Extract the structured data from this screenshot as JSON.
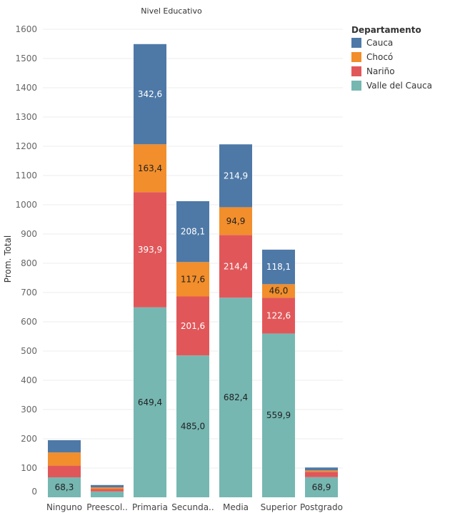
{
  "chart_data": {
    "type": "bar",
    "stacked": true,
    "title": "Nivel Educativo",
    "ylabel": "Prom. Total",
    "ylim": [
      0,
      1600
    ],
    "yticks": [
      0,
      100,
      200,
      300,
      400,
      500,
      600,
      700,
      800,
      900,
      1000,
      1100,
      1200,
      1300,
      1400,
      1500,
      1600
    ],
    "grid": true,
    "categories": [
      "Ninguno",
      "Preescol..",
      "Primaria",
      "Secunda..",
      "Media",
      "Superior",
      "Postgrado"
    ],
    "legend": {
      "title": "Departamento",
      "placement": "top-right"
    },
    "series": [
      {
        "name": "Valle del Cauca",
        "color": "#76b7b2",
        "label_color": "#222222",
        "values": [
          68.3,
          20,
          649.4,
          485.0,
          682.4,
          559.9,
          68.9
        ],
        "labels": [
          "68,3",
          "",
          "649,4",
          "485,0",
          "682,4",
          "559,9",
          "68,9"
        ]
      },
      {
        "name": "Nariño",
        "color": "#e15759",
        "label_color": "#ffffff",
        "values": [
          40,
          8,
          393.9,
          201.6,
          214.4,
          122.6,
          18
        ],
        "labels": [
          "",
          "",
          "393,9",
          "201,6",
          "214,4",
          "122,6",
          ""
        ]
      },
      {
        "name": "Chocó",
        "color": "#f28e2b",
        "label_color": "#222222",
        "values": [
          45,
          6,
          163.4,
          117.6,
          94.9,
          46.0,
          5
        ],
        "labels": [
          "",
          "",
          "163,4",
          "117,6",
          "94,9",
          "46,0",
          ""
        ]
      },
      {
        "name": "Cauca",
        "color": "#4e79a7",
        "label_color": "#ffffff",
        "values": [
          42,
          8,
          342.6,
          208.1,
          214.9,
          118.1,
          10
        ],
        "labels": [
          "",
          "",
          "342,6",
          "208,1",
          "214,9",
          "118,1",
          ""
        ]
      }
    ]
  }
}
